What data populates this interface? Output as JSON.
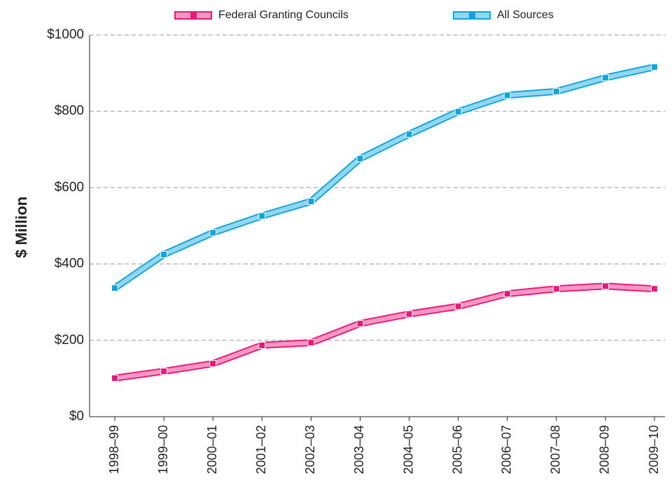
{
  "chart_data": {
    "type": "line",
    "y_label": "$ Million",
    "categories": [
      "1998–99",
      "1999–00",
      "2000–01",
      "2001–02",
      "2002–03",
      "2003–04",
      "2004–05",
      "2005–06",
      "2006–07",
      "2007–08",
      "2008–09",
      "2009–10"
    ],
    "series": [
      {
        "name": "Federal Granting Councils",
        "color": "#e8197a",
        "values": [
          101,
          119,
          139,
          187,
          194,
          244,
          269,
          289,
          322,
          335,
          342,
          335
        ]
      },
      {
        "name": "All Sources",
        "color": "#0ea5dc",
        "values": [
          337,
          425,
          482,
          526,
          564,
          676,
          740,
          799,
          842,
          852,
          888,
          916
        ]
      }
    ],
    "ylim": [
      0,
      1000
    ],
    "yticks": [
      {
        "value": 0,
        "label": "$0"
      },
      {
        "value": 200,
        "label": "$200"
      },
      {
        "value": 400,
        "label": "$400"
      },
      {
        "value": 600,
        "label": "$600"
      },
      {
        "value": 800,
        "label": "$800"
      },
      {
        "value": 1000,
        "label": "$1000"
      }
    ],
    "grid": true
  }
}
